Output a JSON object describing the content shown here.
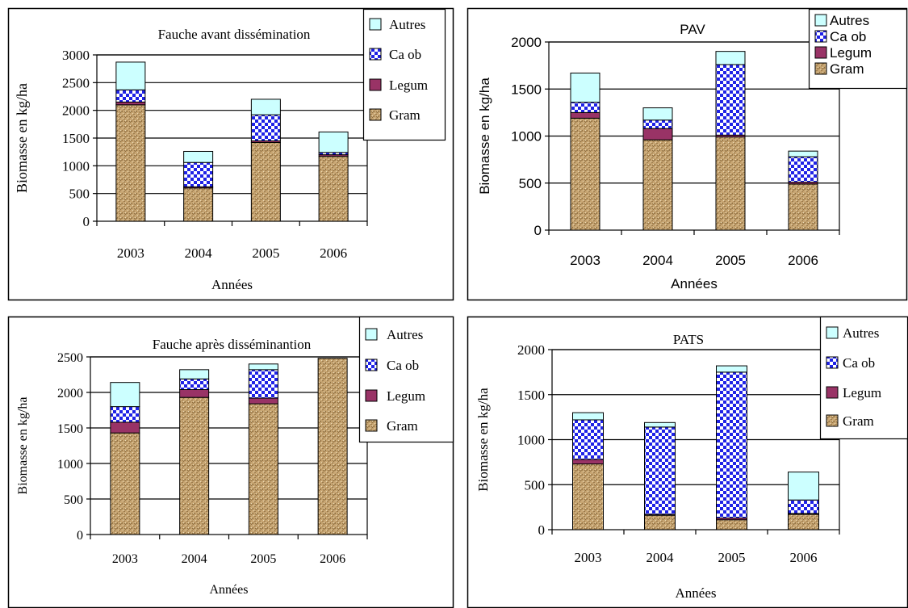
{
  "chart_data": [
    {
      "type": "bar",
      "stacked": true,
      "title": "Fauche avant dissémination",
      "xlabel": "Années",
      "ylabel": "Biomasse en kg/ha",
      "categories": [
        "2003",
        "2004",
        "2005",
        "2006"
      ],
      "ylim": [
        0,
        3000
      ],
      "yticks": [
        "0",
        "500",
        "1000",
        "1500",
        "2000",
        "2500",
        "3000"
      ],
      "grid": true,
      "legend": "right",
      "series": [
        {
          "name": "Gram",
          "values": [
            2100,
            600,
            1420,
            1170
          ]
        },
        {
          "name": "Legum",
          "values": [
            50,
            20,
            30,
            30
          ]
        },
        {
          "name": "Ca ob",
          "values": [
            220,
            440,
            470,
            40
          ]
        },
        {
          "name": "Autres",
          "values": [
            500,
            200,
            280,
            370
          ]
        }
      ]
    },
    {
      "type": "bar",
      "stacked": true,
      "title": "PAV",
      "xlabel": "Années",
      "ylabel": "Biomasse en kg/ha",
      "categories": [
        "2003",
        "2004",
        "2005",
        "2006"
      ],
      "ylim": [
        0,
        2000
      ],
      "yticks": [
        "0",
        "500",
        "1000",
        "1500",
        "2000"
      ],
      "grid": true,
      "legend": "top-right",
      "series": [
        {
          "name": "Gram",
          "values": [
            1190,
            960,
            990,
            490
          ]
        },
        {
          "name": "Legum",
          "values": [
            60,
            120,
            20,
            20
          ]
        },
        {
          "name": "Ca ob",
          "values": [
            110,
            90,
            750,
            270
          ]
        },
        {
          "name": "Autres",
          "values": [
            310,
            130,
            140,
            60
          ]
        }
      ]
    },
    {
      "type": "bar",
      "stacked": true,
      "title": "Fauche après disséminantion",
      "xlabel": "Années",
      "ylabel": "Biomasse en kg/ha",
      "categories": [
        "2003",
        "2004",
        "2005",
        "2006"
      ],
      "ylim": [
        0,
        2500
      ],
      "yticks": [
        "0",
        "500",
        "1000",
        "1500",
        "2000",
        "2500"
      ],
      "grid": true,
      "legend": "right",
      "series": [
        {
          "name": "Gram",
          "values": [
            1430,
            1930,
            1840,
            2480
          ]
        },
        {
          "name": "Legum",
          "values": [
            150,
            110,
            80,
            0
          ]
        },
        {
          "name": "Ca ob",
          "values": [
            220,
            150,
            400,
            0
          ]
        },
        {
          "name": "Autres",
          "values": [
            340,
            130,
            80,
            0
          ]
        }
      ]
    },
    {
      "type": "bar",
      "stacked": true,
      "title": "PATS",
      "xlabel": "Années",
      "ylabel": "Biomasse en kg/ha",
      "categories": [
        "2003",
        "2004",
        "2005",
        "2006"
      ],
      "ylim": [
        0,
        2000
      ],
      "yticks": [
        "0",
        "500",
        "1000",
        "1500",
        "2000"
      ],
      "grid": true,
      "legend": "right",
      "series": [
        {
          "name": "Gram",
          "values": [
            730,
            160,
            110,
            170
          ]
        },
        {
          "name": "Legum",
          "values": [
            50,
            10,
            20,
            10
          ]
        },
        {
          "name": "Ca ob",
          "values": [
            440,
            970,
            1620,
            150
          ]
        },
        {
          "name": "Autres",
          "values": [
            80,
            50,
            70,
            310
          ]
        }
      ]
    }
  ],
  "colors": {
    "Autres": "#ccffff",
    "Ca ob": "#2222ee",
    "Legum": "#993366",
    "Gram": "#c8a978"
  }
}
